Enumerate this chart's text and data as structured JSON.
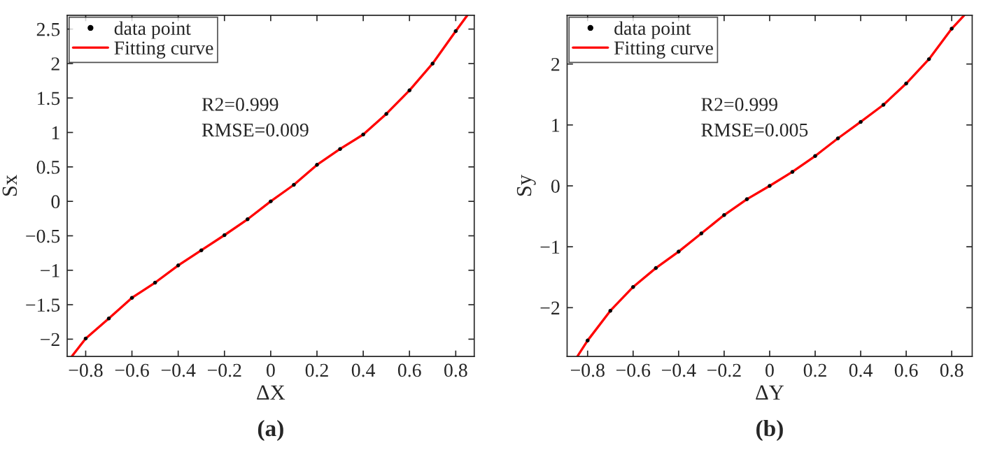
{
  "chart_data": [
    {
      "type": "scatter",
      "title": "(a)",
      "xlabel": "ΔX",
      "ylabel": "Sx",
      "xlim": [
        -0.88,
        0.88
      ],
      "ylim": [
        -2.25,
        2.7
      ],
      "xticks": [
        -0.8,
        -0.6,
        -0.4,
        -0.2,
        0,
        0.2,
        0.4,
        0.6,
        0.8
      ],
      "yticks": [
        -2,
        -1.5,
        -1,
        -0.5,
        0,
        0.5,
        1,
        1.5,
        2,
        2.5
      ],
      "legend": "top left",
      "grid": false,
      "annotations": [
        "R2=0.999",
        "RMSE=0.009"
      ],
      "series": [
        {
          "name": "data point",
          "marker": "circle",
          "color": "#000000",
          "x": [
            -0.8,
            -0.7,
            -0.6,
            -0.5,
            -0.4,
            -0.3,
            -0.2,
            -0.1,
            0,
            0.1,
            0.2,
            0.3,
            0.4,
            0.5,
            0.6,
            0.7,
            0.8
          ],
          "values": [
            -1.99,
            -1.7,
            -1.4,
            -1.18,
            -0.93,
            -0.71,
            -0.49,
            -0.26,
            0,
            0.24,
            0.53,
            0.76,
            0.97,
            1.27,
            1.61,
            2.0,
            2.47
          ]
        },
        {
          "name": "Fitting curve",
          "type": "line",
          "marker": "none",
          "line_style": "solid",
          "color": "#ff0000",
          "x": [
            -0.86,
            -0.8,
            -0.7,
            -0.6,
            -0.5,
            -0.4,
            -0.3,
            -0.2,
            -0.1,
            0,
            0.1,
            0.2,
            0.3,
            0.4,
            0.5,
            0.6,
            0.7,
            0.8,
            0.85
          ],
          "values": [
            -2.25,
            -1.99,
            -1.7,
            -1.4,
            -1.18,
            -0.93,
            -0.71,
            -0.49,
            -0.26,
            0,
            0.24,
            0.53,
            0.76,
            0.97,
            1.27,
            1.61,
            2.0,
            2.47,
            2.7
          ]
        }
      ]
    },
    {
      "type": "scatter",
      "title": "(b)",
      "xlabel": "ΔY",
      "ylabel": "Sy",
      "xlim": [
        -0.89,
        0.89
      ],
      "ylim": [
        -2.8,
        2.8
      ],
      "xticks": [
        -0.8,
        -0.6,
        -0.4,
        -0.2,
        0,
        0.2,
        0.4,
        0.6,
        0.8
      ],
      "yticks": [
        -2,
        -1,
        0,
        1,
        2
      ],
      "legend": "top left",
      "grid": false,
      "annotations": [
        "R2=0.999",
        "RMSE=0.005"
      ],
      "series": [
        {
          "name": "data point",
          "marker": "circle",
          "color": "#000000",
          "x": [
            -0.8,
            -0.7,
            -0.6,
            -0.5,
            -0.4,
            -0.3,
            -0.2,
            -0.1,
            0,
            0.1,
            0.2,
            0.3,
            0.4,
            0.5,
            0.6,
            0.7,
            0.8
          ],
          "values": [
            -2.54,
            -2.05,
            -1.66,
            -1.35,
            -1.08,
            -0.78,
            -0.48,
            -0.22,
            0,
            0.23,
            0.49,
            0.78,
            1.05,
            1.33,
            1.68,
            2.08,
            2.58
          ]
        },
        {
          "name": "Fitting curve",
          "type": "line",
          "marker": "none",
          "line_style": "solid",
          "color": "#ff0000",
          "x": [
            -0.845,
            -0.8,
            -0.7,
            -0.6,
            -0.5,
            -0.4,
            -0.3,
            -0.2,
            -0.1,
            0,
            0.1,
            0.2,
            0.3,
            0.4,
            0.5,
            0.6,
            0.7,
            0.8,
            0.855
          ],
          "values": [
            -2.8,
            -2.54,
            -2.05,
            -1.66,
            -1.35,
            -1.08,
            -0.78,
            -0.48,
            -0.22,
            0,
            0.23,
            0.49,
            0.78,
            1.05,
            1.33,
            1.68,
            2.08,
            2.58,
            2.8
          ]
        }
      ]
    }
  ]
}
